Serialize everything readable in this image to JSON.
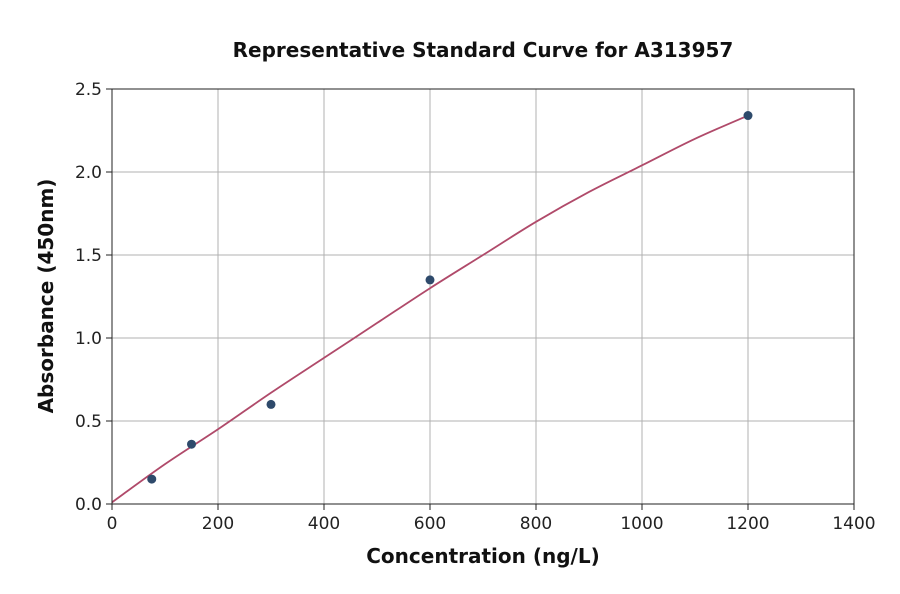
{
  "chart_data": {
    "type": "scatter",
    "title": "Representative Standard Curve for A313957",
    "xlabel": "Concentration (ng/L)",
    "ylabel": "Absorbance (450nm)",
    "xlim": [
      0,
      1400
    ],
    "ylim": [
      0.0,
      2.5
    ],
    "xticks": [
      0,
      200,
      400,
      600,
      800,
      1000,
      1200,
      1400
    ],
    "xtick_labels": [
      "0",
      "200",
      "400",
      "600",
      "800",
      "1000",
      "1200",
      "1400"
    ],
    "yticks": [
      0.0,
      0.5,
      1.0,
      1.5,
      2.0,
      2.5
    ],
    "ytick_labels": [
      "0.0",
      "0.5",
      "1.0",
      "1.5",
      "2.0",
      "2.5"
    ],
    "grid": true,
    "points": {
      "x": [
        75,
        150,
        300,
        600,
        1200
      ],
      "y": [
        0.15,
        0.36,
        0.6,
        1.35,
        2.34
      ],
      "color": "#2e4a6b"
    },
    "fit_curve": {
      "x": [
        0,
        100,
        200,
        300,
        400,
        500,
        600,
        700,
        800,
        900,
        1000,
        1100,
        1200
      ],
      "y": [
        0.01,
        0.24,
        0.45,
        0.67,
        0.88,
        1.09,
        1.3,
        1.5,
        1.7,
        1.88,
        2.04,
        2.2,
        2.34
      ],
      "color": "#b04a6a"
    }
  }
}
